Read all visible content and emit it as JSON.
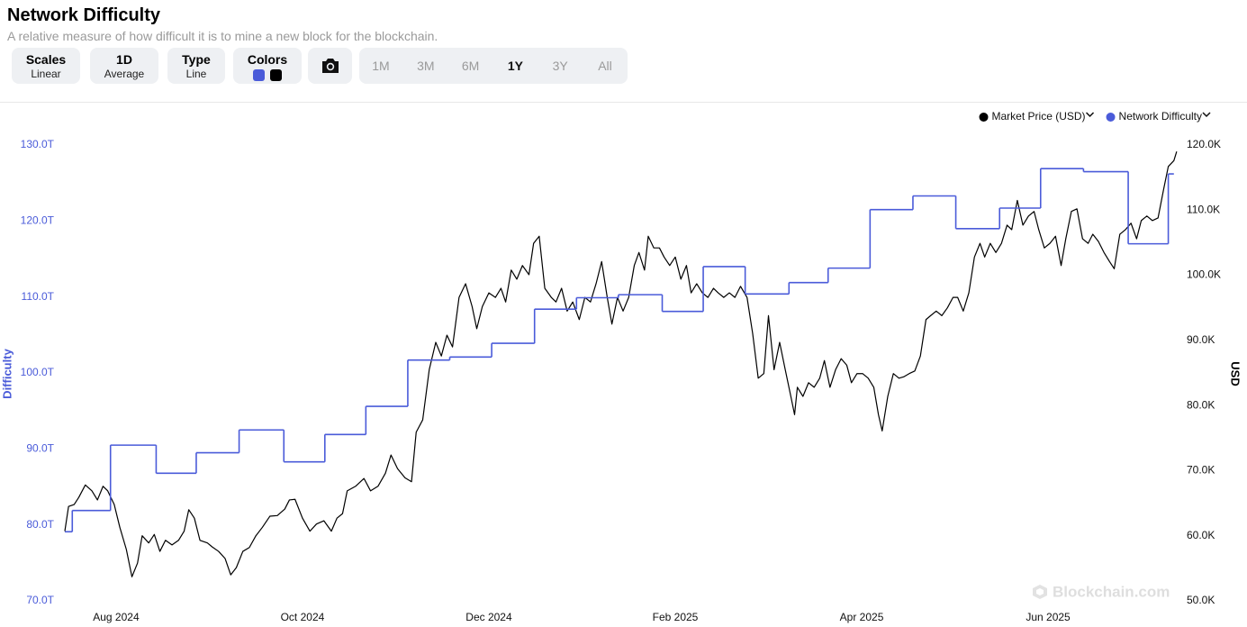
{
  "header": {
    "title": "Network Difficulty",
    "subtitle": "A relative measure of how difficult it is to mine a new block for the blockchain."
  },
  "controls": {
    "scales": {
      "label": "Scales",
      "value": "Linear"
    },
    "interval": {
      "label": "1D",
      "value": "Average"
    },
    "chart_type": {
      "label": "Type",
      "value": "Line"
    },
    "colors": {
      "label": "Colors"
    },
    "ranges": [
      "1M",
      "3M",
      "6M",
      "1Y",
      "3Y",
      "All"
    ],
    "active_range": "1Y"
  },
  "watermark": "Blockchain.com",
  "chart_data": {
    "type": "line",
    "y_label": "Difficulty",
    "y2_label": "USD",
    "legend": "top-right",
    "grid": false,
    "xlim": [
      7.45,
      19.41
    ],
    "xticks": [
      {
        "value": 8,
        "label": "Aug 2024"
      },
      {
        "value": 10,
        "label": "Oct 2024"
      },
      {
        "value": 12,
        "label": "Dec 2024"
      },
      {
        "value": 14,
        "label": "Feb 2025"
      },
      {
        "value": 16,
        "label": "Apr 2025"
      },
      {
        "value": 18,
        "label": "Jun 2025"
      }
    ],
    "ylim": [
      70,
      130
    ],
    "yticks": [
      {
        "value": 70,
        "label": "70.0T"
      },
      {
        "value": 80,
        "label": "80.0T"
      },
      {
        "value": 90,
        "label": "90.0T"
      },
      {
        "value": 100,
        "label": "100.0T"
      },
      {
        "value": 110,
        "label": "110.0T"
      },
      {
        "value": 120,
        "label": "120.0T"
      },
      {
        "value": 130,
        "label": "130.0T"
      }
    ],
    "y2lim": [
      50,
      120
    ],
    "y2ticks": [
      {
        "value": 50,
        "label": "50.0K"
      },
      {
        "value": 60,
        "label": "60.0K"
      },
      {
        "value": 70,
        "label": "70.0K"
      },
      {
        "value": 80,
        "label": "80.0K"
      },
      {
        "value": 90,
        "label": "90.0K"
      },
      {
        "value": 100,
        "label": "100.0K"
      },
      {
        "value": 110,
        "label": "110.0K"
      },
      {
        "value": 120,
        "label": "120.0K"
      }
    ],
    "series": [
      {
        "name": "Market Price (USD)",
        "color": "#000000",
        "axis": "y2",
        "x": [
          7.45,
          7.49,
          7.55,
          7.6,
          7.67,
          7.74,
          7.8,
          7.86,
          7.91,
          7.98,
          8.04,
          8.11,
          8.17,
          8.23,
          8.28,
          8.35,
          8.41,
          8.47,
          8.53,
          8.6,
          8.67,
          8.73,
          8.78,
          8.84,
          8.9,
          8.98,
          9.03,
          9.1,
          9.17,
          9.23,
          9.29,
          9.36,
          9.43,
          9.5,
          9.57,
          9.65,
          9.73,
          9.81,
          9.86,
          9.92,
          10.0,
          10.08,
          10.15,
          10.23,
          10.31,
          10.37,
          10.43,
          10.48,
          10.57,
          10.66,
          10.73,
          10.81,
          10.89,
          10.95,
          11.02,
          11.1,
          11.17,
          11.22,
          11.29,
          11.36,
          11.43,
          11.49,
          11.55,
          11.61,
          11.68,
          11.75,
          11.82,
          11.87,
          11.93,
          12.0,
          12.07,
          12.13,
          12.18,
          12.24,
          12.3,
          12.36,
          12.43,
          12.48,
          12.54,
          12.6,
          12.67,
          12.72,
          12.78,
          12.84,
          12.9,
          12.97,
          13.03,
          13.09,
          13.15,
          13.21,
          13.27,
          13.32,
          13.38,
          13.44,
          13.5,
          13.56,
          13.61,
          13.67,
          13.71,
          13.77,
          13.83,
          13.88,
          13.94,
          14.0,
          14.06,
          14.12,
          14.17,
          14.23,
          14.29,
          14.35,
          14.41,
          14.46,
          14.52,
          14.58,
          14.64,
          14.7,
          14.77,
          14.83,
          14.89,
          14.95,
          15.0,
          15.06,
          15.12,
          15.18,
          15.24,
          15.28,
          15.31,
          15.37,
          15.43,
          15.49,
          15.55,
          15.6,
          15.66,
          15.72,
          15.78,
          15.84,
          15.89,
          15.95,
          16.01,
          16.07,
          16.13,
          16.18,
          16.22,
          16.28,
          16.34,
          16.4,
          16.45,
          16.51,
          16.57,
          16.63,
          16.69,
          16.74,
          16.8,
          16.86,
          16.92,
          16.98,
          17.03,
          17.09,
          17.15,
          17.21,
          17.27,
          17.32,
          17.38,
          17.44,
          17.5,
          17.56,
          17.61,
          17.67,
          17.73,
          17.79,
          17.85,
          17.9,
          17.96,
          18.02,
          18.08,
          18.14,
          18.19,
          18.25,
          18.31,
          18.37,
          18.43,
          18.48,
          18.54,
          18.6,
          18.66,
          18.71,
          18.77,
          18.83,
          18.89,
          18.95,
          19.0,
          19.06,
          19.12,
          19.18,
          19.24,
          19.29,
          19.35,
          19.38
        ],
        "values": [
          60.7,
          64.5,
          64.8,
          65.9,
          67.8,
          66.9,
          65.5,
          67.6,
          66.9,
          64.8,
          61.3,
          57.9,
          53.7,
          55.8,
          60.0,
          58.9,
          60.2,
          57.6,
          59.3,
          58.6,
          59.3,
          60.7,
          64.0,
          62.7,
          59.3,
          58.9,
          58.3,
          57.6,
          56.5,
          54.0,
          55.1,
          57.6,
          58.2,
          60.0,
          61.3,
          63.0,
          63.1,
          64.1,
          65.5,
          65.6,
          62.7,
          60.7,
          61.8,
          62.3,
          60.7,
          62.7,
          63.4,
          66.9,
          67.6,
          68.8,
          66.9,
          67.6,
          69.6,
          72.4,
          70.3,
          68.9,
          68.3,
          75.9,
          77.8,
          85.5,
          89.7,
          87.6,
          90.8,
          89.0,
          96.6,
          98.7,
          95.2,
          91.8,
          95.2,
          97.3,
          96.6,
          98.0,
          95.9,
          100.8,
          99.4,
          101.5,
          100.1,
          104.9,
          106.0,
          98.0,
          96.6,
          95.9,
          98.0,
          94.5,
          95.9,
          93.2,
          96.6,
          95.9,
          98.7,
          102.1,
          96.6,
          92.5,
          96.6,
          94.5,
          96.6,
          101.5,
          103.5,
          100.8,
          106.0,
          104.2,
          104.2,
          102.8,
          101.5,
          102.8,
          99.4,
          101.5,
          97.3,
          98.7,
          97.3,
          96.6,
          98.0,
          97.3,
          96.6,
          97.3,
          96.6,
          98.3,
          96.6,
          91.1,
          84.2,
          84.9,
          93.8,
          85.5,
          89.7,
          85.5,
          81.4,
          78.6,
          82.8,
          81.4,
          83.5,
          82.8,
          84.2,
          86.9,
          82.8,
          85.5,
          87.2,
          86.2,
          83.5,
          84.9,
          84.9,
          84.2,
          82.8,
          78.6,
          76.1,
          81.4,
          84.9,
          84.2,
          84.4,
          84.9,
          85.3,
          87.6,
          93.2,
          93.8,
          94.5,
          93.8,
          95.0,
          96.6,
          96.6,
          94.5,
          97.3,
          102.8,
          104.9,
          102.8,
          104.9,
          103.5,
          104.9,
          107.7,
          107.0,
          111.5,
          107.7,
          109.1,
          109.8,
          107.0,
          104.2,
          104.9,
          106.0,
          101.5,
          105.6,
          109.8,
          110.2,
          105.6,
          104.9,
          106.3,
          105.2,
          103.5,
          102.1,
          101.0,
          106.3,
          107.0,
          108.0,
          105.6,
          108.4,
          109.1,
          108.4,
          108.8,
          113.2,
          116.7,
          117.6,
          119.0
        ]
      },
      {
        "name": "Network Difficulty",
        "color": "#4a5bd9",
        "axis": "y",
        "step": "after",
        "x": [
          7.45,
          7.53,
          7.94,
          8.43,
          8.86,
          9.32,
          9.8,
          10.24,
          10.68,
          11.13,
          11.58,
          12.03,
          12.49,
          12.94,
          13.39,
          13.86,
          14.3,
          14.75,
          15.22,
          15.64,
          16.09,
          16.55,
          17.01,
          17.48,
          17.92,
          18.38,
          18.86,
          19.29,
          19.35
        ],
        "values": [
          79.1,
          81.9,
          90.5,
          86.8,
          89.5,
          92.5,
          88.3,
          91.9,
          95.6,
          101.7,
          102.1,
          103.9,
          108.4,
          109.9,
          110.3,
          108.1,
          114.0,
          110.4,
          111.9,
          113.8,
          121.5,
          123.3,
          119.0,
          121.7,
          126.9,
          126.5,
          117.0,
          126.2,
          126.2
        ]
      }
    ]
  }
}
